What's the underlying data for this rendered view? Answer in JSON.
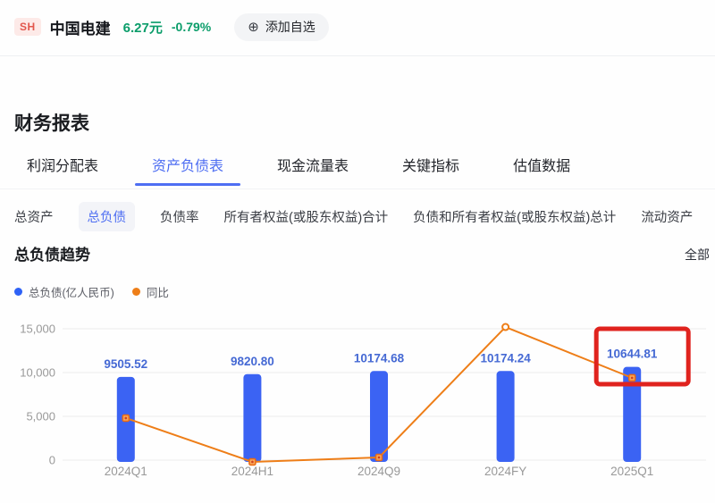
{
  "header": {
    "exchange_badge": "SH",
    "stock_name": "中国电建",
    "price": "6.27元",
    "change": "-0.79%",
    "add_icon": "⊕",
    "add_watchlist_label": "添加自选"
  },
  "section": {
    "title": "财务报表"
  },
  "tabs": [
    {
      "label": "利润分配表",
      "active": false
    },
    {
      "label": "资产负债表",
      "active": true
    },
    {
      "label": "现金流量表",
      "active": false
    },
    {
      "label": "关键指标",
      "active": false
    },
    {
      "label": "估值数据",
      "active": false
    }
  ],
  "subtabs": [
    {
      "label": "总资产",
      "active": false
    },
    {
      "label": "总负债",
      "active": true
    },
    {
      "label": "负债率",
      "active": false
    },
    {
      "label": "所有者权益(或股东权益)合计",
      "active": false
    },
    {
      "label": "负债和所有者权益(或股东权益)总计",
      "active": false
    },
    {
      "label": "流动资产",
      "active": false
    }
  ],
  "chart_header": {
    "title": "总负债趋势",
    "filter_label": "全部"
  },
  "legend": [
    {
      "label": "总负债(亿人民币)",
      "color": "#2e62f6"
    },
    {
      "label": "同比",
      "color": "#ee7e18"
    }
  ],
  "chart_data": {
    "type": "bar",
    "title": "总负债趋势",
    "categories": [
      "2024Q1",
      "2024H1",
      "2024Q9",
      "2024FY",
      "2025Q1"
    ],
    "series": [
      {
        "name": "总负债(亿人民币)",
        "type": "bar",
        "values": [
          9505.52,
          9820.8,
          10174.68,
          10174.24,
          10644.81
        ],
        "value_labels": [
          "9505.52",
          "9820.80",
          "10174.68",
          "10174.24",
          "10644.81"
        ],
        "color": "#3b63f3"
      },
      {
        "name": "同比",
        "type": "line",
        "axis_note": "secondary axis not labeled; values estimated in left-axis units from plotted line",
        "values_left_axis_est": [
          4800,
          -200,
          300,
          15200,
          9400
        ],
        "color": "#ee7e18"
      }
    ],
    "ylim": [
      0,
      15000
    ],
    "yticks_values": [
      0,
      5000,
      10000,
      15000
    ],
    "yticks_labels": [
      "0",
      "5,000",
      "10,000",
      "15,000"
    ],
    "grid": true,
    "legend_position": "top-left",
    "annotation": {
      "type": "red-highlight-box",
      "category": "2025Q1",
      "color": "#e0231e"
    }
  },
  "colors": {
    "accent_blue": "#4e6ef2",
    "bar_blue": "#3b63f3",
    "value_label_blue": "#4569d4",
    "line_orange": "#ee7e18",
    "highlight_red": "#e0231e",
    "price_green": "#0b9d6a",
    "axis_gray": "#999999",
    "gridline": "#ececec"
  }
}
